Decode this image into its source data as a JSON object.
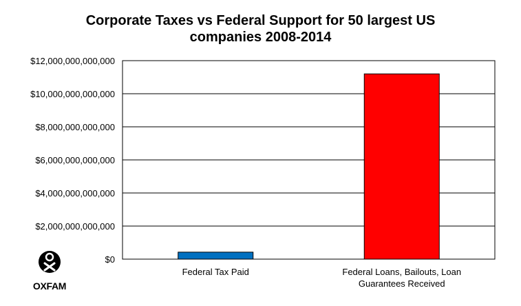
{
  "chart_data": {
    "type": "bar",
    "title_lines": [
      "Corporate Taxes vs Federal Support for 50 largest US",
      "companies 2008-2014"
    ],
    "categories": [
      [
        "Federal Tax Paid"
      ],
      [
        "Federal Loans, Bailouts, Loan",
        "Guarantees Received"
      ]
    ],
    "values": [
      423000000000,
      11200000000000
    ],
    "bar_colors": [
      "#0070c0",
      "#ff0000"
    ],
    "ylim": [
      0,
      12000000000000
    ],
    "yticks": [
      0,
      2000000000000,
      4000000000000,
      6000000000000,
      8000000000000,
      10000000000000,
      12000000000000
    ],
    "ytick_labels": [
      "$0",
      "$2,000,000,000,000",
      "$4,000,000,000,000",
      "$6,000,000,000,000",
      "$8,000,000,000,000",
      "$10,000,000,000,000",
      "$12,000,000,000,000"
    ],
    "grid": true,
    "legend": "none"
  },
  "logo": {
    "name": "OXFAM",
    "icon": "oxfam-logo-icon"
  }
}
